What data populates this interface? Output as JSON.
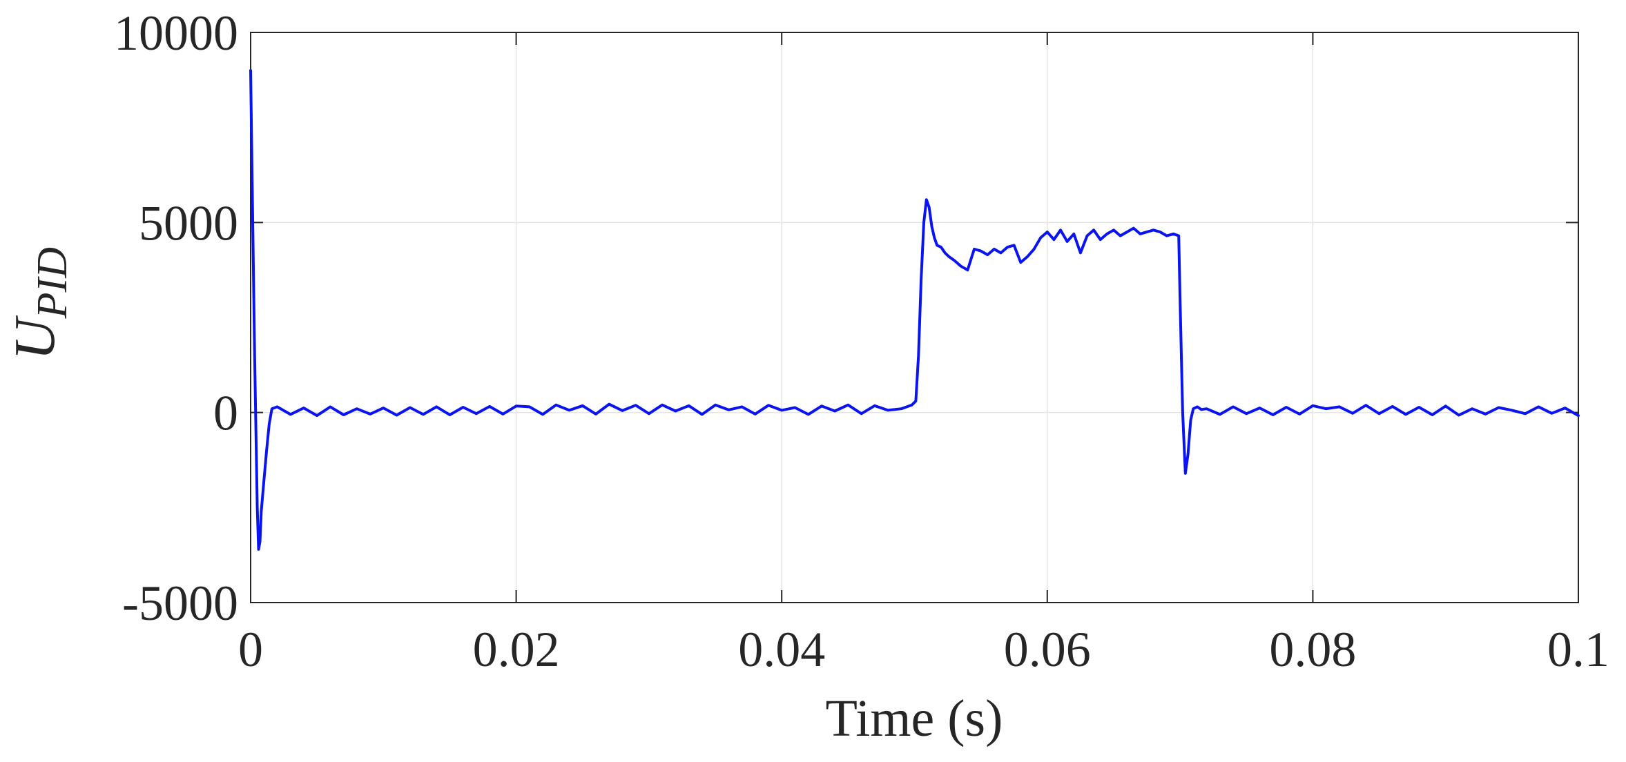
{
  "chart_data": {
    "type": "line",
    "xlabel": "Time (s)",
    "ylabel": "U",
    "ylabel_subscript": "PID",
    "xlim": [
      0,
      0.1
    ],
    "ylim": [
      -5000,
      10000
    ],
    "xticks": [
      0,
      0.02,
      0.04,
      0.06,
      0.08,
      0.1
    ],
    "xtick_labels": [
      "0",
      "0.02",
      "0.04",
      "0.06",
      "0.08",
      "0.1"
    ],
    "yticks": [
      -5000,
      0,
      5000,
      10000
    ],
    "ytick_labels": [
      "-5000",
      "0",
      "5000",
      "10000"
    ],
    "grid": true,
    "series": [
      {
        "color": "#0a14f0",
        "x": [
          0,
          0.0001,
          0.0003,
          0.0005,
          0.0006,
          0.0007,
          0.0008,
          0.001,
          0.0012,
          0.0014,
          0.0016,
          0.002,
          0.003,
          0.004,
          0.005,
          0.006,
          0.007,
          0.008,
          0.009,
          0.01,
          0.011,
          0.012,
          0.013,
          0.014,
          0.015,
          0.016,
          0.017,
          0.018,
          0.019,
          0.02,
          0.021,
          0.022,
          0.023,
          0.024,
          0.025,
          0.026,
          0.027,
          0.028,
          0.029,
          0.03,
          0.031,
          0.032,
          0.033,
          0.034,
          0.035,
          0.036,
          0.037,
          0.038,
          0.039,
          0.04,
          0.041,
          0.042,
          0.043,
          0.044,
          0.045,
          0.046,
          0.047,
          0.048,
          0.049,
          0.0498,
          0.0501,
          0.0503,
          0.0505,
          0.0507,
          0.0509,
          0.0511,
          0.0513,
          0.0515,
          0.0517,
          0.052,
          0.0523,
          0.0526,
          0.053,
          0.0535,
          0.054,
          0.0545,
          0.055,
          0.0555,
          0.056,
          0.0565,
          0.057,
          0.0575,
          0.058,
          0.0585,
          0.059,
          0.0595,
          0.06,
          0.0605,
          0.061,
          0.0615,
          0.062,
          0.0625,
          0.063,
          0.0635,
          0.064,
          0.0645,
          0.065,
          0.0655,
          0.066,
          0.0665,
          0.067,
          0.0675,
          0.068,
          0.0685,
          0.069,
          0.0695,
          0.0699,
          0.07,
          0.0702,
          0.0704,
          0.0706,
          0.0708,
          0.071,
          0.0713,
          0.0716,
          0.072,
          0.073,
          0.074,
          0.075,
          0.076,
          0.077,
          0.078,
          0.079,
          0.08,
          0.081,
          0.082,
          0.083,
          0.084,
          0.085,
          0.086,
          0.087,
          0.088,
          0.089,
          0.09,
          0.091,
          0.092,
          0.093,
          0.094,
          0.095,
          0.096,
          0.097,
          0.098,
          0.099,
          0.1
        ],
        "y": [
          9000,
          6500,
          1500,
          -2500,
          -3600,
          -3400,
          -2600,
          -1800,
          -1000,
          -300,
          100,
          150,
          -50,
          120,
          -80,
          150,
          -60,
          100,
          -40,
          120,
          -70,
          130,
          -50,
          150,
          -60,
          140,
          -30,
          160,
          -40,
          170,
          150,
          -50,
          200,
          60,
          180,
          -40,
          220,
          50,
          190,
          -30,
          200,
          40,
          180,
          -50,
          200,
          70,
          150,
          -40,
          190,
          60,
          130,
          -50,
          170,
          40,
          200,
          -30,
          180,
          60,
          100,
          200,
          300,
          1500,
          3500,
          5000,
          5600,
          5400,
          4900,
          4600,
          4400,
          4350,
          4200,
          4100,
          4000,
          3850,
          3750,
          4300,
          4250,
          4150,
          4300,
          4200,
          4350,
          4400,
          3950,
          4100,
          4300,
          4600,
          4750,
          4550,
          4800,
          4500,
          4700,
          4200,
          4650,
          4800,
          4550,
          4700,
          4800,
          4650,
          4750,
          4850,
          4700,
          4750,
          4800,
          4750,
          4650,
          4700,
          4650,
          3000,
          0,
          -1600,
          -1100,
          -200,
          100,
          150,
          80,
          100,
          -50,
          150,
          -30,
          120,
          -60,
          140,
          -40,
          180,
          100,
          150,
          -20,
          190,
          -30,
          160,
          -50,
          140,
          -60,
          170,
          -70,
          100,
          -40,
          130,
          60,
          -30,
          150,
          -20,
          120,
          -80
        ]
      }
    ]
  }
}
